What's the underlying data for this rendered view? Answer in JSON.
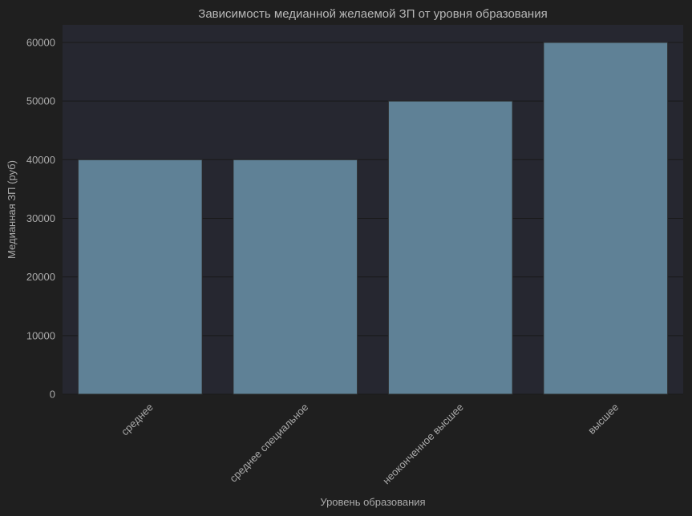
{
  "chart_data": {
    "type": "bar",
    "title": "Зависимость медианной желаемой ЗП от уровня образования",
    "xlabel": "Уровень образования",
    "ylabel": "Медианная ЗП (руб)",
    "categories": [
      "среднее",
      "среднее специальное",
      "неоконченное высшее",
      "высшее"
    ],
    "values": [
      40000,
      40000,
      50000,
      60000
    ],
    "ylim": [
      0,
      63000
    ],
    "yticks": [
      0,
      10000,
      20000,
      30000,
      40000,
      50000,
      60000
    ],
    "ytick_labels": [
      "0",
      "10000",
      "20000",
      "30000",
      "40000",
      "50000",
      "60000"
    ],
    "grid": true,
    "colors": {
      "figure_background": "#1f1f1f",
      "plot_background": "#262730",
      "bar": "#5f8196",
      "bar_edge": "#2a2a2a",
      "grid": "#191919",
      "text": "#aaaaaa"
    }
  }
}
